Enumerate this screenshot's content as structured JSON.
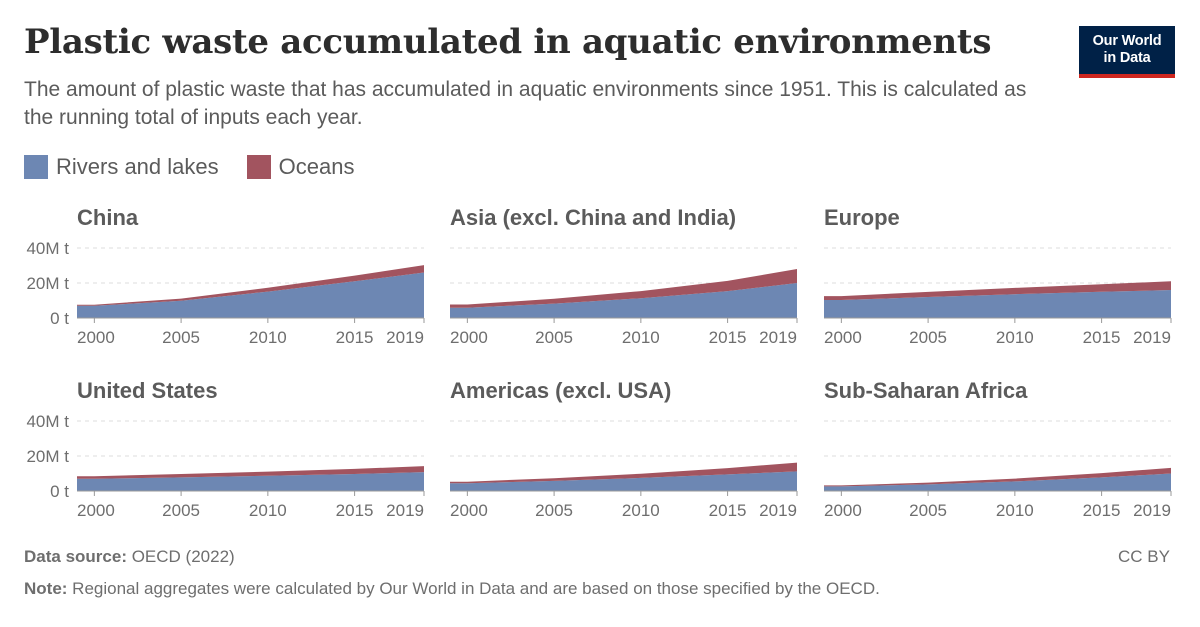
{
  "title": "Plastic waste accumulated in aquatic environments",
  "subtitle": "The amount of plastic waste that has accumulated in aquatic environments since 1951. This is calculated as the running total of inputs each year.",
  "logo": {
    "line1": "Our World",
    "line2": "in Data"
  },
  "legend": [
    {
      "label": "Rivers and lakes",
      "color": "#6d87b3"
    },
    {
      "label": "Oceans",
      "color": "#a2545f"
    }
  ],
  "footer": {
    "source_label": "Data source:",
    "source_text": " OECD (2022)",
    "note_label": "Note:",
    "note_text": " Regional aggregates were calculated by Our World in Data and are based on those specified by the OECD.",
    "license": "CC BY"
  },
  "chart_data": {
    "type": "area",
    "stacked": true,
    "x": [
      2000,
      2005,
      2010,
      2015,
      2019
    ],
    "xlim": [
      1999,
      2019
    ],
    "x_ticks": [
      "2000",
      "2005",
      "2010",
      "2015",
      "2019"
    ],
    "ylim": [
      0,
      40
    ],
    "y_ticks": [
      "0 t",
      "20M t",
      "40M t"
    ],
    "y_unit": "million tonnes",
    "grid": "horizontal dashed",
    "series_names": [
      "Rivers and lakes",
      "Oceans"
    ],
    "panels": [
      {
        "name": "China",
        "series": [
          {
            "name": "Rivers and lakes",
            "values": [
              7,
              9.9,
              15.1,
              21,
              26
            ]
          },
          {
            "name": "Oceans",
            "values": [
              0.6,
              1.2,
              2.2,
              3.2,
              4.2
            ]
          }
        ]
      },
      {
        "name": "Asia (excl. China and India)",
        "series": [
          {
            "name": "Rivers and lakes",
            "values": [
              5.9,
              8.2,
              11.3,
              15.4,
              20
            ]
          },
          {
            "name": "Oceans",
            "values": [
              1.8,
              2.8,
              4.1,
              5.8,
              8
            ]
          }
        ]
      },
      {
        "name": "Europe",
        "series": [
          {
            "name": "Rivers and lakes",
            "values": [
              10.3,
              12,
              13.6,
              15,
              16
            ]
          },
          {
            "name": "Oceans",
            "values": [
              2.2,
              2.9,
              3.6,
              4.3,
              5
            ]
          }
        ]
      },
      {
        "name": "United States",
        "series": [
          {
            "name": "Rivers and lakes",
            "values": [
              7,
              7.8,
              8.7,
              9.7,
              10.8
            ]
          },
          {
            "name": "Oceans",
            "values": [
              1.4,
              1.9,
              2.4,
              2.9,
              3.4
            ]
          }
        ]
      },
      {
        "name": "Americas (excl. USA)",
        "series": [
          {
            "name": "Rivers and lakes",
            "values": [
              4.4,
              5.8,
              7.5,
              9.5,
              11.2
            ]
          },
          {
            "name": "Oceans",
            "values": [
              0.9,
              1.5,
              2.4,
              3.6,
              5
            ]
          }
        ]
      },
      {
        "name": "Sub-Saharan Africa",
        "series": [
          {
            "name": "Rivers and lakes",
            "values": [
              2.6,
              3.8,
              5.5,
              7.8,
              10
            ]
          },
          {
            "name": "Oceans",
            "values": [
              0.6,
              1,
              1.6,
              2.4,
              3.2
            ]
          }
        ]
      }
    ]
  }
}
